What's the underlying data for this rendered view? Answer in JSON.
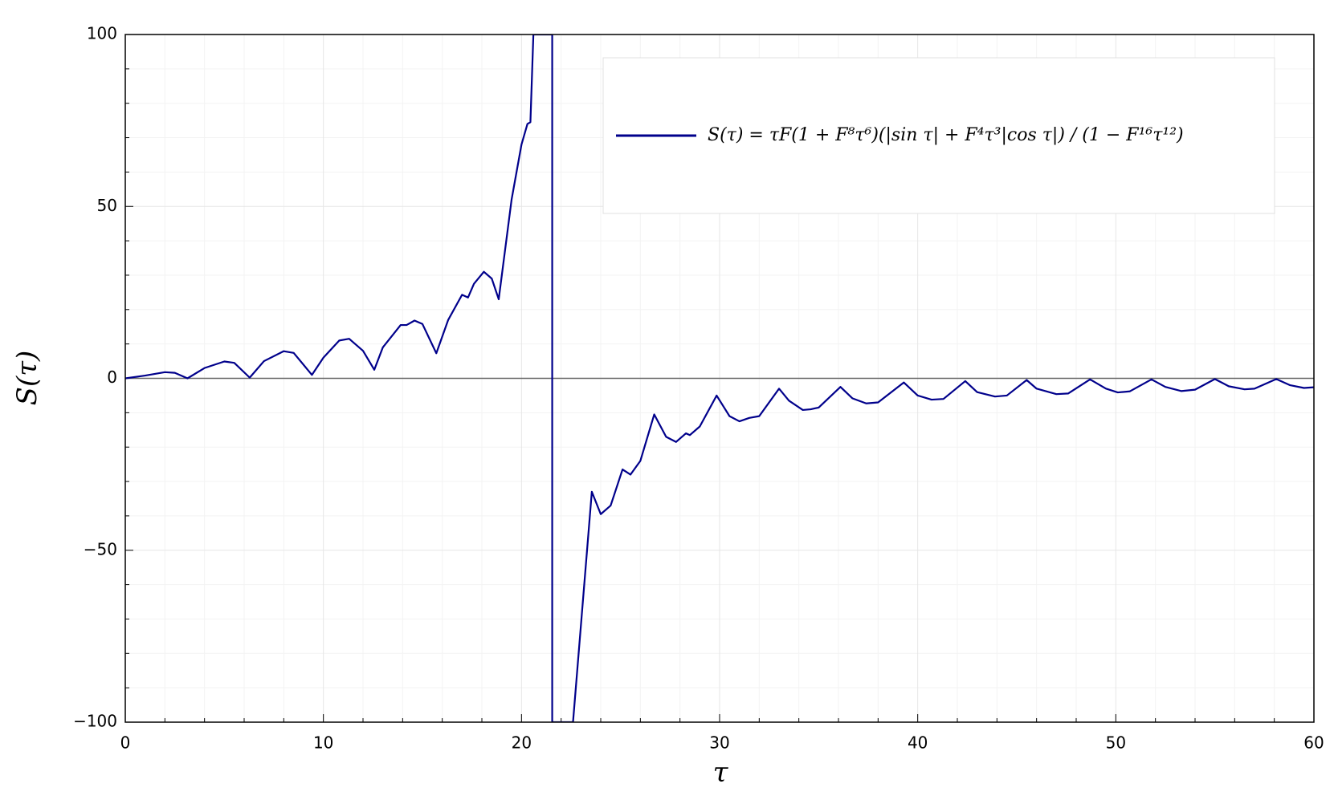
{
  "chart_data": {
    "type": "line",
    "x_label": "τ",
    "y_label": "S(τ)",
    "xlim": [
      0,
      60
    ],
    "ylim": [
      -100,
      100
    ],
    "xticks": [
      0,
      10,
      20,
      30,
      40,
      50,
      60
    ],
    "yticks": [
      {
        "value": -100,
        "label": "−100"
      },
      {
        "value": -50,
        "label": "−50"
      },
      0,
      50,
      100
    ],
    "xminorticks": [
      2,
      4,
      6,
      8,
      12,
      14,
      16,
      18,
      22,
      24,
      26,
      28,
      32,
      34,
      36,
      38,
      42,
      44,
      46,
      48,
      52,
      54,
      56,
      58
    ],
    "yminorticks": [
      -90,
      -80,
      -70,
      -60,
      -40,
      -30,
      -20,
      -10,
      10,
      20,
      30,
      40,
      60,
      70,
      80,
      90
    ],
    "grid": true,
    "hline": 0,
    "legend": "top-right",
    "x": [
      0,
      1,
      2,
      2.5,
      3.14,
      4,
      5,
      5.5,
      6.28,
      7,
      8,
      8.5,
      9.42,
      10,
      10.8,
      11.3,
      12,
      12.57,
      13,
      13.9,
      14.2,
      14.6,
      15,
      15.7,
      16.3,
      17,
      17.3,
      17.6,
      18.1,
      18.5,
      18.85,
      19.5,
      20,
      20.3,
      20.45,
      20.6,
      21.55,
      21.55,
      22.6,
      23.55,
      24,
      24.5,
      25.1,
      25.5,
      26,
      26.7,
      27.3,
      27.8,
      28.3,
      28.5,
      29,
      29.85,
      30.5,
      31,
      31.5,
      32,
      33,
      33.5,
      34.2,
      34.6,
      35,
      36.1,
      36.7,
      37.4,
      38,
      39.3,
      40,
      40.7,
      41.3,
      42.4,
      43,
      43.9,
      44.5,
      45.5,
      46,
      47,
      47.6,
      48.7,
      49.5,
      50.1,
      50.7,
      51.8,
      52.5,
      53.3,
      54,
      55,
      55.7,
      56.5,
      57,
      58.1,
      58.8,
      59.5,
      60
    ],
    "series": [
      {
        "name": "S(τ) = τF(1 + F⁸τ⁶)(|sin τ| + F⁴τ³|cos τ|) / (1 − F¹⁶τ¹²)",
        "color": "#00008b",
        "values": [
          0,
          0.8,
          1.8,
          1.6,
          0,
          3,
          4.9,
          4.5,
          0.2,
          5,
          7.9,
          7.4,
          1,
          6,
          11,
          11.5,
          8,
          2.5,
          9,
          15.5,
          15.5,
          16.8,
          15.8,
          7.3,
          17,
          24.3,
          23.5,
          27.5,
          31,
          29,
          23,
          52,
          68,
          74,
          74.5,
          100,
          100,
          -100,
          -100,
          -33,
          -39.5,
          -37,
          -26.5,
          -28,
          -24,
          -10.5,
          -17,
          -18.5,
          -16,
          -16.5,
          -14,
          -5,
          -11,
          -12.5,
          -11.5,
          -11,
          -3,
          -6.5,
          -9.2,
          -9,
          -8.5,
          -2.5,
          -5.8,
          -7.3,
          -7,
          -1.2,
          -5,
          -6.2,
          -6,
          -0.8,
          -4,
          -5.3,
          -5,
          -0.5,
          -3,
          -4.6,
          -4.4,
          -0.3,
          -3,
          -4.1,
          -3.8,
          -0.3,
          -2.5,
          -3.7,
          -3.3,
          -0.2,
          -2.3,
          -3.2,
          -3,
          -0.2,
          -2,
          -2.8,
          -2.6
        ]
      }
    ]
  }
}
